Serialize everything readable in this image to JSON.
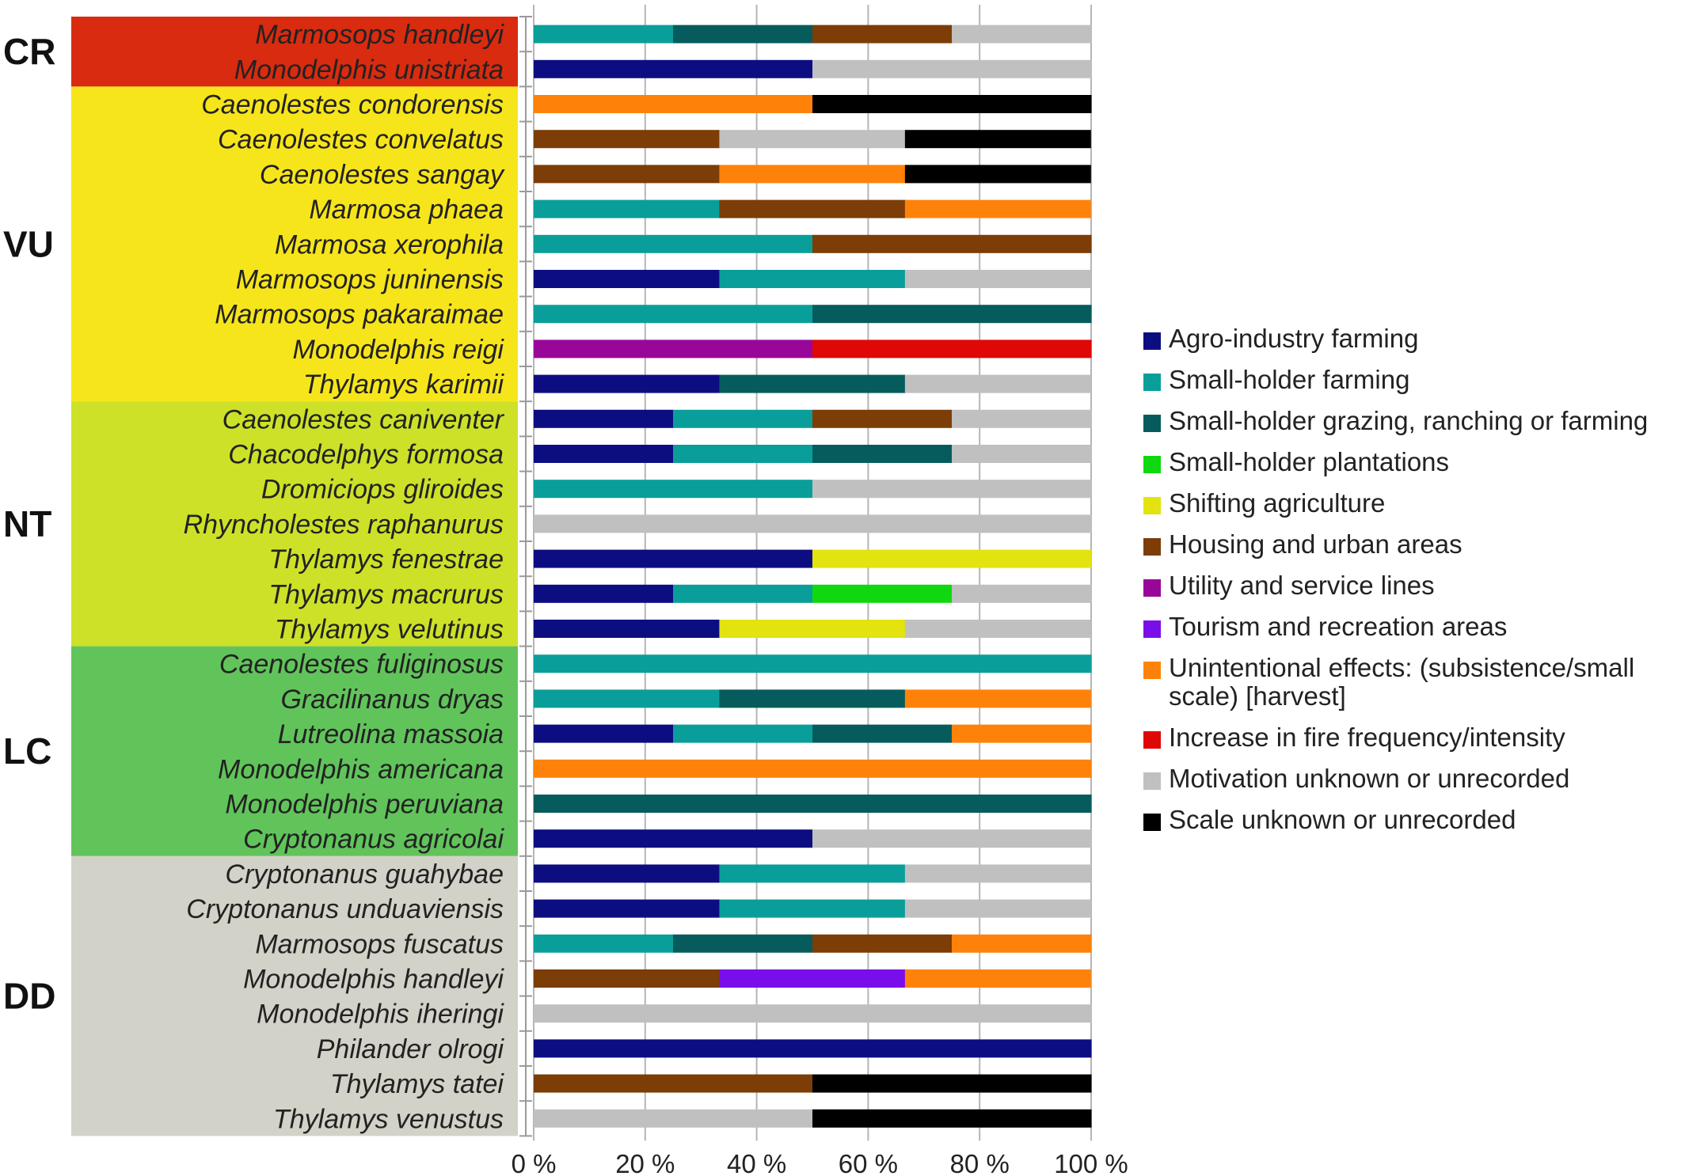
{
  "chart_data": {
    "type": "bar",
    "orientation": "horizontal",
    "stacked": "percent",
    "xlim": [
      0,
      100
    ],
    "xticks": [
      "0 %",
      "20 %",
      "40 %",
      "60 %",
      "80 %",
      "100 %"
    ],
    "grid": "vertical",
    "legend_position": "right",
    "groups": [
      {
        "label": "CR",
        "color": "#d92b0f",
        "start": 0,
        "end": 1
      },
      {
        "label": "VU",
        "color": "#f7e51b",
        "start": 2,
        "end": 10
      },
      {
        "label": "NT",
        "color": "#cde128",
        "start": 11,
        "end": 17
      },
      {
        "label": "LC",
        "color": "#61c45b",
        "start": 18,
        "end": 23
      },
      {
        "label": "DD",
        "color": "#d3d2c8",
        "start": 24,
        "end": 31
      }
    ],
    "categories": [
      "Marmosops handleyi",
      "Monodelphis unistriata",
      "Caenolestes condorensis",
      "Caenolestes convelatus",
      "Caenolestes sangay",
      "Marmosa phaea",
      "Marmosa xerophila",
      "Marmosops juninensis",
      "Marmosops pakaraimae",
      "Monodelphis reigi",
      "Thylamys karimii",
      "Caenolestes caniventer",
      "Chacodelphys formosa",
      "Dromiciops gliroides",
      "Rhyncholestes raphanurus",
      "Thylamys fenestrae",
      "Thylamys macrurus",
      "Thylamys velutinus",
      "Caenolestes fuliginosus",
      "Gracilinanus dryas",
      "Lutreolina massoia",
      "Monodelphis americana",
      "Monodelphis peruviana",
      "Cryptonanus agricolai",
      "Cryptonanus guahybae",
      "Cryptonanus unduaviensis",
      "Marmosops fuscatus",
      "Monodelphis handleyi",
      "Monodelphis iheringi",
      "Philander olrogi",
      "Thylamys tatei",
      "Thylamys venustus"
    ],
    "series": [
      {
        "name": "Agro-industry farming",
        "color": "#0d0d82",
        "values": [
          0,
          50,
          0,
          0,
          0,
          0,
          0,
          33.3,
          0,
          0,
          33.3,
          25,
          25,
          0,
          0,
          50,
          25,
          33.3,
          0,
          0,
          25,
          0,
          0,
          50,
          33.3,
          33.3,
          0,
          0,
          0,
          100,
          0,
          0
        ]
      },
      {
        "name": "Small-holder farming",
        "color": "#0a9e9a",
        "values": [
          25,
          0,
          0,
          0,
          0,
          33.3,
          50,
          33.3,
          50,
          0,
          0,
          25,
          25,
          50,
          0,
          0,
          25,
          0,
          100,
          33.3,
          25,
          0,
          0,
          0,
          33.3,
          33.3,
          25,
          0,
          0,
          0,
          0,
          0
        ]
      },
      {
        "name": "Small-holder grazing, ranching or farming",
        "color": "#065c5c",
        "values": [
          25,
          0,
          0,
          0,
          0,
          0,
          0,
          0,
          50,
          0,
          33.3,
          0,
          25,
          0,
          0,
          0,
          0,
          0,
          0,
          33.3,
          25,
          0,
          100,
          0,
          0,
          0,
          25,
          0,
          0,
          0,
          0,
          0
        ]
      },
      {
        "name": "Small-holder plantations",
        "color": "#10d810",
        "values": [
          0,
          0,
          0,
          0,
          0,
          0,
          0,
          0,
          0,
          0,
          0,
          0,
          0,
          0,
          0,
          0,
          25,
          0,
          0,
          0,
          0,
          0,
          0,
          0,
          0,
          0,
          0,
          0,
          0,
          0,
          0,
          0
        ]
      },
      {
        "name": "Shifting agriculture",
        "color": "#e3e30f",
        "values": [
          0,
          0,
          0,
          0,
          0,
          0,
          0,
          0,
          0,
          0,
          0,
          0,
          0,
          0,
          0,
          50,
          0,
          33.3,
          0,
          0,
          0,
          0,
          0,
          0,
          0,
          0,
          0,
          0,
          0,
          0,
          0,
          0
        ]
      },
      {
        "name": "Housing and urban areas",
        "color": "#7c3d06",
        "values": [
          25,
          0,
          0,
          33.3,
          33.3,
          33.3,
          50,
          0,
          0,
          0,
          0,
          25,
          0,
          0,
          0,
          0,
          0,
          0,
          0,
          0,
          0,
          0,
          0,
          0,
          0,
          0,
          25,
          33.3,
          0,
          0,
          50,
          0
        ]
      },
      {
        "name": "Utility and service lines",
        "color": "#990799",
        "values": [
          0,
          0,
          0,
          0,
          0,
          0,
          0,
          0,
          0,
          50,
          0,
          0,
          0,
          0,
          0,
          0,
          0,
          0,
          0,
          0,
          0,
          0,
          0,
          0,
          0,
          0,
          0,
          0,
          0,
          0,
          0,
          0
        ]
      },
      {
        "name": "Tourism and recreation areas",
        "color": "#7a0eea",
        "values": [
          0,
          0,
          0,
          0,
          0,
          0,
          0,
          0,
          0,
          0,
          0,
          0,
          0,
          0,
          0,
          0,
          0,
          0,
          0,
          0,
          0,
          0,
          0,
          0,
          0,
          0,
          0,
          33.3,
          0,
          0,
          0,
          0
        ]
      },
      {
        "name": "Unintentional effects: (subsistence/small scale) [harvest]",
        "color": "#fe820a",
        "values": [
          0,
          0,
          50,
          0,
          33.3,
          33.3,
          0,
          0,
          0,
          0,
          0,
          0,
          0,
          0,
          0,
          0,
          0,
          0,
          0,
          33.3,
          25,
          100,
          0,
          0,
          0,
          0,
          25,
          33.3,
          0,
          0,
          0,
          0
        ]
      },
      {
        "name": "Increase in fire frequency/intensity",
        "color": "#e00707",
        "values": [
          0,
          0,
          0,
          0,
          0,
          0,
          0,
          0,
          0,
          50,
          0,
          0,
          0,
          0,
          0,
          0,
          0,
          0,
          0,
          0,
          0,
          0,
          0,
          0,
          0,
          0,
          0,
          0,
          0,
          0,
          0,
          0
        ]
      },
      {
        "name": "Motivation unknown or unrecorded",
        "color": "#c0c0c0",
        "values": [
          25,
          50,
          0,
          33.3,
          0,
          0,
          0,
          33.3,
          0,
          0,
          33.3,
          25,
          25,
          50,
          100,
          0,
          25,
          33.3,
          0,
          0,
          0,
          0,
          0,
          50,
          33.3,
          33.3,
          0,
          0,
          100,
          0,
          0,
          50
        ]
      },
      {
        "name": "Scale unknown or unrecorded",
        "color": "#000000",
        "values": [
          0,
          0,
          50,
          33.3,
          33.3,
          0,
          0,
          0,
          0,
          0,
          0,
          0,
          0,
          0,
          0,
          0,
          0,
          0,
          0,
          0,
          0,
          0,
          0,
          0,
          0,
          0,
          0,
          0,
          0,
          0,
          50,
          50
        ]
      }
    ]
  }
}
